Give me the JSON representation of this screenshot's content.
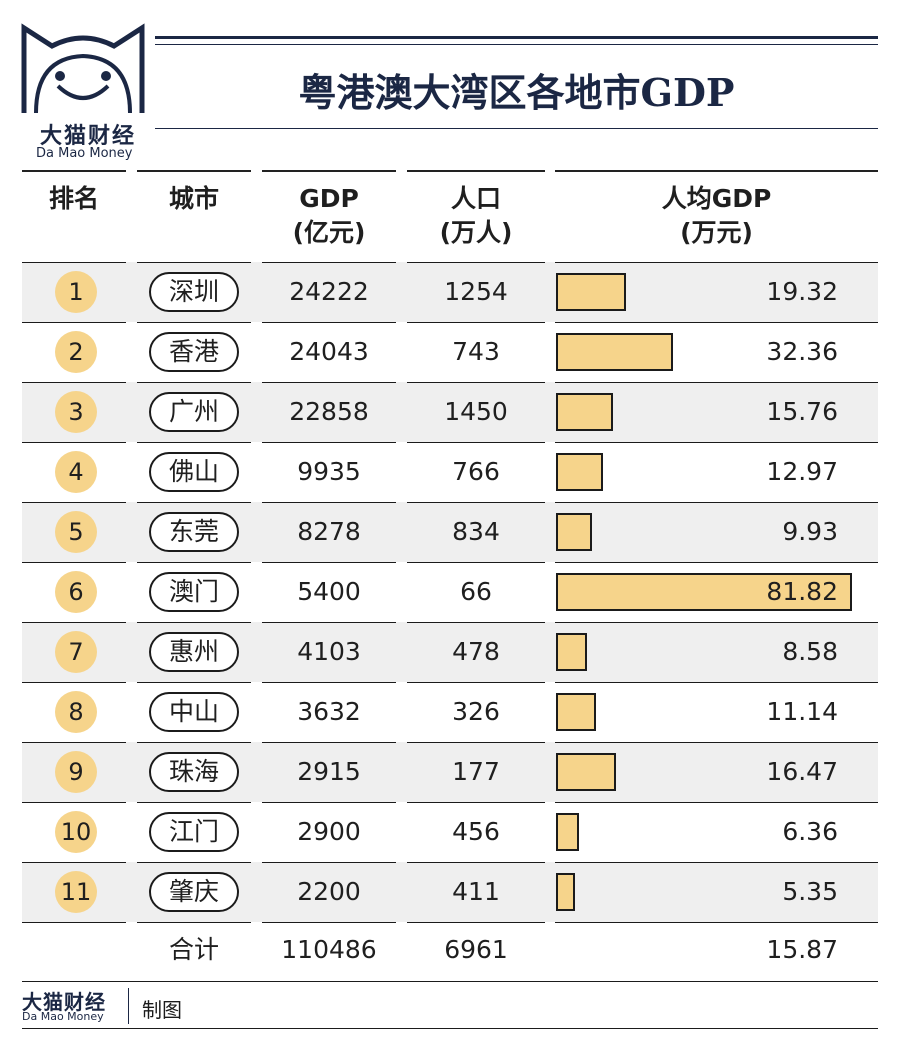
{
  "brand": {
    "name_cn": "大猫财经",
    "name_en": "Da Mao Money"
  },
  "title": "粤港澳大湾区各地市GDP",
  "footer": {
    "brand_cn": "大猫财经",
    "brand_en": "Da Mao Money",
    "note": "制图"
  },
  "headers": {
    "rank": "排名",
    "city": "城市",
    "gdp_line1": "GDP",
    "gdp_line2": "(亿元)",
    "pop_line1": "人口",
    "pop_line2": "(万人)",
    "per_line1": "人均GDP",
    "per_line2": "(万元)"
  },
  "colors": {
    "accent": "#f6d48b",
    "navy": "#1b2744",
    "row_shade": "#efefef"
  },
  "chart_data": {
    "type": "table",
    "title": "粤港澳大湾区各地市GDP",
    "columns": [
      "排名",
      "城市",
      "GDP (亿元)",
      "人口 (万人)",
      "人均GDP (万元)"
    ],
    "rows": [
      {
        "rank": "1",
        "city": "深圳",
        "gdp": "24222",
        "population": "1254",
        "per_capita": "19.32",
        "per_capita_value": 19.32
      },
      {
        "rank": "2",
        "city": "香港",
        "gdp": "24043",
        "population": "743",
        "per_capita": "32.36",
        "per_capita_value": 32.36
      },
      {
        "rank": "3",
        "city": "广州",
        "gdp": "22858",
        "population": "1450",
        "per_capita": "15.76",
        "per_capita_value": 15.76
      },
      {
        "rank": "4",
        "city": "佛山",
        "gdp": "9935",
        "population": "766",
        "per_capita": "12.97",
        "per_capita_value": 12.97
      },
      {
        "rank": "5",
        "city": "东莞",
        "gdp": "8278",
        "population": "834",
        "per_capita": "9.93",
        "per_capita_value": 9.93
      },
      {
        "rank": "6",
        "city": "澳门",
        "gdp": "5400",
        "population": "66",
        "per_capita": "81.82",
        "per_capita_value": 81.82
      },
      {
        "rank": "7",
        "city": "惠州",
        "gdp": "4103",
        "population": "478",
        "per_capita": "8.58",
        "per_capita_value": 8.58
      },
      {
        "rank": "8",
        "city": "中山",
        "gdp": "3632",
        "population": "326",
        "per_capita": "11.14",
        "per_capita_value": 11.14
      },
      {
        "rank": "9",
        "city": "珠海",
        "gdp": "2915",
        "population": "177",
        "per_capita": "16.47",
        "per_capita_value": 16.47
      },
      {
        "rank": "10",
        "city": "江门",
        "gdp": "2900",
        "population": "456",
        "per_capita": "6.36",
        "per_capita_value": 6.36
      },
      {
        "rank": "11",
        "city": "肇庆",
        "gdp": "2200",
        "population": "411",
        "per_capita": "5.35",
        "per_capita_value": 5.35
      }
    ],
    "total": {
      "label": "合计",
      "gdp": "110486",
      "population": "6961",
      "per_capita": "15.87"
    },
    "bar_max": 81.82
  }
}
